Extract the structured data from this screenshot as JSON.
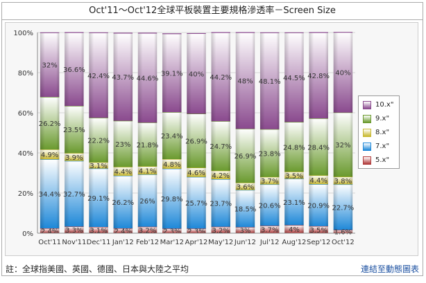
{
  "title": "Oct'11～Oct'12全球平板裝置主要規格滲透率－Screen Size",
  "footer": {
    "note": "註：全球指美國、英國、德國、日本與大陸之平均",
    "link": "連結至動態圖表"
  },
  "colors": {
    "5.x": "#b03a3a",
    "7.x": "#1e88d8",
    "8.x": "#c8b830",
    "9.x": "#6a9a2e",
    "10.x": "#8a4a8e"
  },
  "chart_data": {
    "type": "bar",
    "stacked": true,
    "categories": [
      "Oct'11",
      "Nov'11",
      "Dec'11",
      "Jan'12",
      "Feb'12",
      "Mar'12",
      "Apr'12",
      "May'12",
      "Jun'12",
      "Jul'12",
      "Aug'12",
      "Sep'12",
      "Oct'12"
    ],
    "ylim": [
      0,
      100
    ],
    "yticks": [
      "0%",
      "20%",
      "40%",
      "60%",
      "80%",
      "100%"
    ],
    "legend_position": "right",
    "series": [
      {
        "name": "5.x\"",
        "key": "5.x",
        "values": [
          2.4,
          3.3,
          3.1,
          2.4,
          3.2,
          2.3,
          2.3,
          3.2,
          3,
          3.7,
          4,
          3.5,
          1.6
        ],
        "labels": [
          "2.4%",
          "3.3%",
          "3.1%",
          "2.4%",
          "3.2%",
          "2.3%",
          "2.3%",
          "3.2%",
          "3%",
          "3.7%",
          "4%",
          "3.5%",
          "1.6%"
        ]
      },
      {
        "name": "7.x\"",
        "key": "7.x",
        "values": [
          34.4,
          32.7,
          29.1,
          26.2,
          26,
          29.8,
          25.7,
          23.7,
          18.5,
          20.6,
          23.1,
          20.9,
          22.7
        ],
        "labels": [
          "34.4%",
          "32.7%",
          "29.1%",
          "26.2%",
          "26%",
          "29.8%",
          "25.7%",
          "23.7%",
          "18.5%",
          "20.6%",
          "23.1%",
          "20.9%",
          "22.7%"
        ]
      },
      {
        "name": "8.x\"",
        "key": "8.x",
        "values": [
          4.9,
          3.9,
          3.1,
          4.4,
          4.1,
          4.8,
          4.6,
          4.2,
          3.6,
          3.7,
          3.5,
          4.4,
          3.8
        ],
        "labels": [
          "4.9%",
          "3.9%",
          "3.1%",
          "4.4%",
          "4.1%",
          "4.8%",
          "4.6%",
          "4.2%",
          "3.6%",
          "3.7%",
          "3.5%",
          "4.4%",
          "3.8%"
        ]
      },
      {
        "name": "9.x\"",
        "key": "9.x",
        "values": [
          26.2,
          23.5,
          22.2,
          23,
          21.8,
          23.4,
          26.9,
          24.7,
          26.9,
          23.8,
          24.8,
          28.4,
          32
        ],
        "labels": [
          "26.2%",
          "23.5%",
          "22.2%",
          "23%",
          "21.8%",
          "23.4%",
          "26.9%",
          "24.7%",
          "26.9%",
          "23.8%",
          "24.8%",
          "28.4%",
          "32%"
        ]
      },
      {
        "name": "10.x\"",
        "key": "10.x",
        "values": [
          32,
          36.6,
          42.4,
          43.7,
          44.6,
          39.1,
          40,
          44.2,
          48,
          48.1,
          44.5,
          42.8,
          40
        ],
        "labels": [
          "32%",
          "36.6%",
          "42.4%",
          "43.7%",
          "44.6%",
          "39.1%",
          "40%",
          "44.2%",
          "48%",
          "48.1%",
          "44.5%",
          "42.8%",
          "40%"
        ]
      }
    ]
  }
}
